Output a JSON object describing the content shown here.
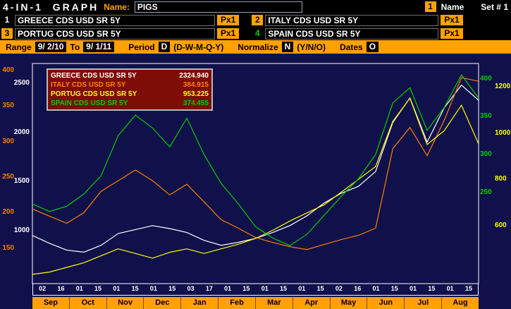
{
  "header": {
    "title": "4-IN-1  GRAPH",
    "name_label": "Name:",
    "name_value": "PIGS",
    "corner_badge": "1",
    "corner_label": "Name",
    "set_label": "Set # 1"
  },
  "securities": [
    {
      "num": "1",
      "name": "GREECE CDS USD SR 5Y",
      "px": "Px1"
    },
    {
      "num": "2",
      "name": "ITALY CDS USD SR 5Y",
      "px": "Px1"
    },
    {
      "num": "3",
      "name": "PORTUG CDS USD SR 5Y",
      "px": "Px1"
    },
    {
      "num": "4",
      "name": "SPAIN CDS USD SR 5Y",
      "px": "Px1"
    }
  ],
  "rangebar": {
    "range_label": "Range",
    "range_from": "9/ 2/10",
    "to_label": "To",
    "range_to": "9/ 1/11",
    "period_label": "Period",
    "period_value": "D",
    "period_options": "(D-W-M-Q-Y)",
    "normalize_label": "Normalize",
    "normalize_value": "N",
    "normalize_options": "(Y/N/O)",
    "dates_label": "Dates",
    "dates_value": "O"
  },
  "legend": {
    "rows": [
      {
        "label": "GREECE CDS USD SR 5Y",
        "value": "2324.940",
        "color": "#ffffff"
      },
      {
        "label": "ITALY CDS USD SR 5Y",
        "value": "384.915",
        "color": "#ff8000"
      },
      {
        "label": "PORTUG CDS USD SR 5Y",
        "value": "953.225",
        "color": "#ffff00"
      },
      {
        "label": "SPAIN CDS USD SR 5Y",
        "value": "374.455",
        "color": "#00d000"
      }
    ]
  },
  "colors": {
    "amber": "#ffa200",
    "chart_navy": "#10104a",
    "legend_bg": "#7d0d05",
    "frame": "#ffffff"
  },
  "chart_data": {
    "type": "line",
    "title": "PIGS sovereign CDS spreads 4-in-1",
    "x_range": [
      "9/ 2/10",
      "9/ 1/11"
    ],
    "grid": false,
    "legend_position": "top-left",
    "months": [
      "Sep",
      "Oct",
      "Nov",
      "Dec",
      "Jan",
      "Feb",
      "Mar",
      "Apr",
      "May",
      "Jun",
      "Jul",
      "Aug"
    ],
    "day_ticks": [
      "02",
      "16",
      "01",
      "15",
      "01",
      "15",
      "01",
      "15",
      "03",
      "17",
      "01",
      "15",
      "01",
      "15",
      "01",
      "15",
      "02",
      "16",
      "01",
      "15",
      "01",
      "15",
      "01",
      "15"
    ],
    "series": [
      {
        "name": "GREECE CDS USD SR 5Y",
        "color": "#ffffff",
        "axis_side": "left",
        "axis_ticks": [
          2500,
          2000,
          1500,
          1000
        ],
        "range": [
          460,
          2700
        ],
        "last": 2324.94,
        "values": [
          950,
          870,
          800,
          780,
          850,
          970,
          1010,
          1050,
          1020,
          980,
          900,
          850,
          880,
          920,
          980,
          1050,
          1150,
          1280,
          1380,
          1450,
          1600,
          2100,
          2350,
          1900,
          2250,
          2480,
          2324.94
        ]
      },
      {
        "name": "ITALY CDS USD SR 5Y",
        "color": "#ff8000",
        "axis_side": "left",
        "axis_ticks": [
          400,
          350,
          300,
          250,
          200,
          150
        ],
        "range": [
          100,
          410
        ],
        "last": 384.915,
        "values": [
          205,
          195,
          185,
          200,
          230,
          245,
          260,
          245,
          225,
          240,
          215,
          190,
          178,
          165,
          158,
          152,
          148,
          155,
          162,
          168,
          178,
          290,
          320,
          280,
          330,
          390,
          384.915
        ]
      },
      {
        "name": "PORTUG CDS USD SR 5Y",
        "color": "#ffff00",
        "axis_side": "right",
        "axis_ticks": [
          1200,
          1000,
          800,
          600
        ],
        "range": [
          350,
          1300
        ],
        "last": 953.225,
        "values": [
          390,
          400,
          420,
          440,
          470,
          500,
          480,
          460,
          485,
          500,
          480,
          500,
          520,
          545,
          580,
          620,
          655,
          690,
          745,
          800,
          855,
          1050,
          1150,
          950,
          1010,
          1120,
          953.225
        ]
      },
      {
        "name": "SPAIN CDS USD SR 5Y",
        "color": "#00d000",
        "axis_side": "right",
        "axis_ticks": [
          400,
          350,
          300,
          250
        ],
        "range": [
          130,
          420
        ],
        "last": 374.455,
        "values": [
          235,
          225,
          232,
          248,
          272,
          325,
          352,
          335,
          310,
          348,
          300,
          262,
          235,
          205,
          190,
          180,
          195,
          220,
          245,
          268,
          300,
          368,
          388,
          332,
          362,
          405,
          374.455
        ]
      }
    ]
  }
}
